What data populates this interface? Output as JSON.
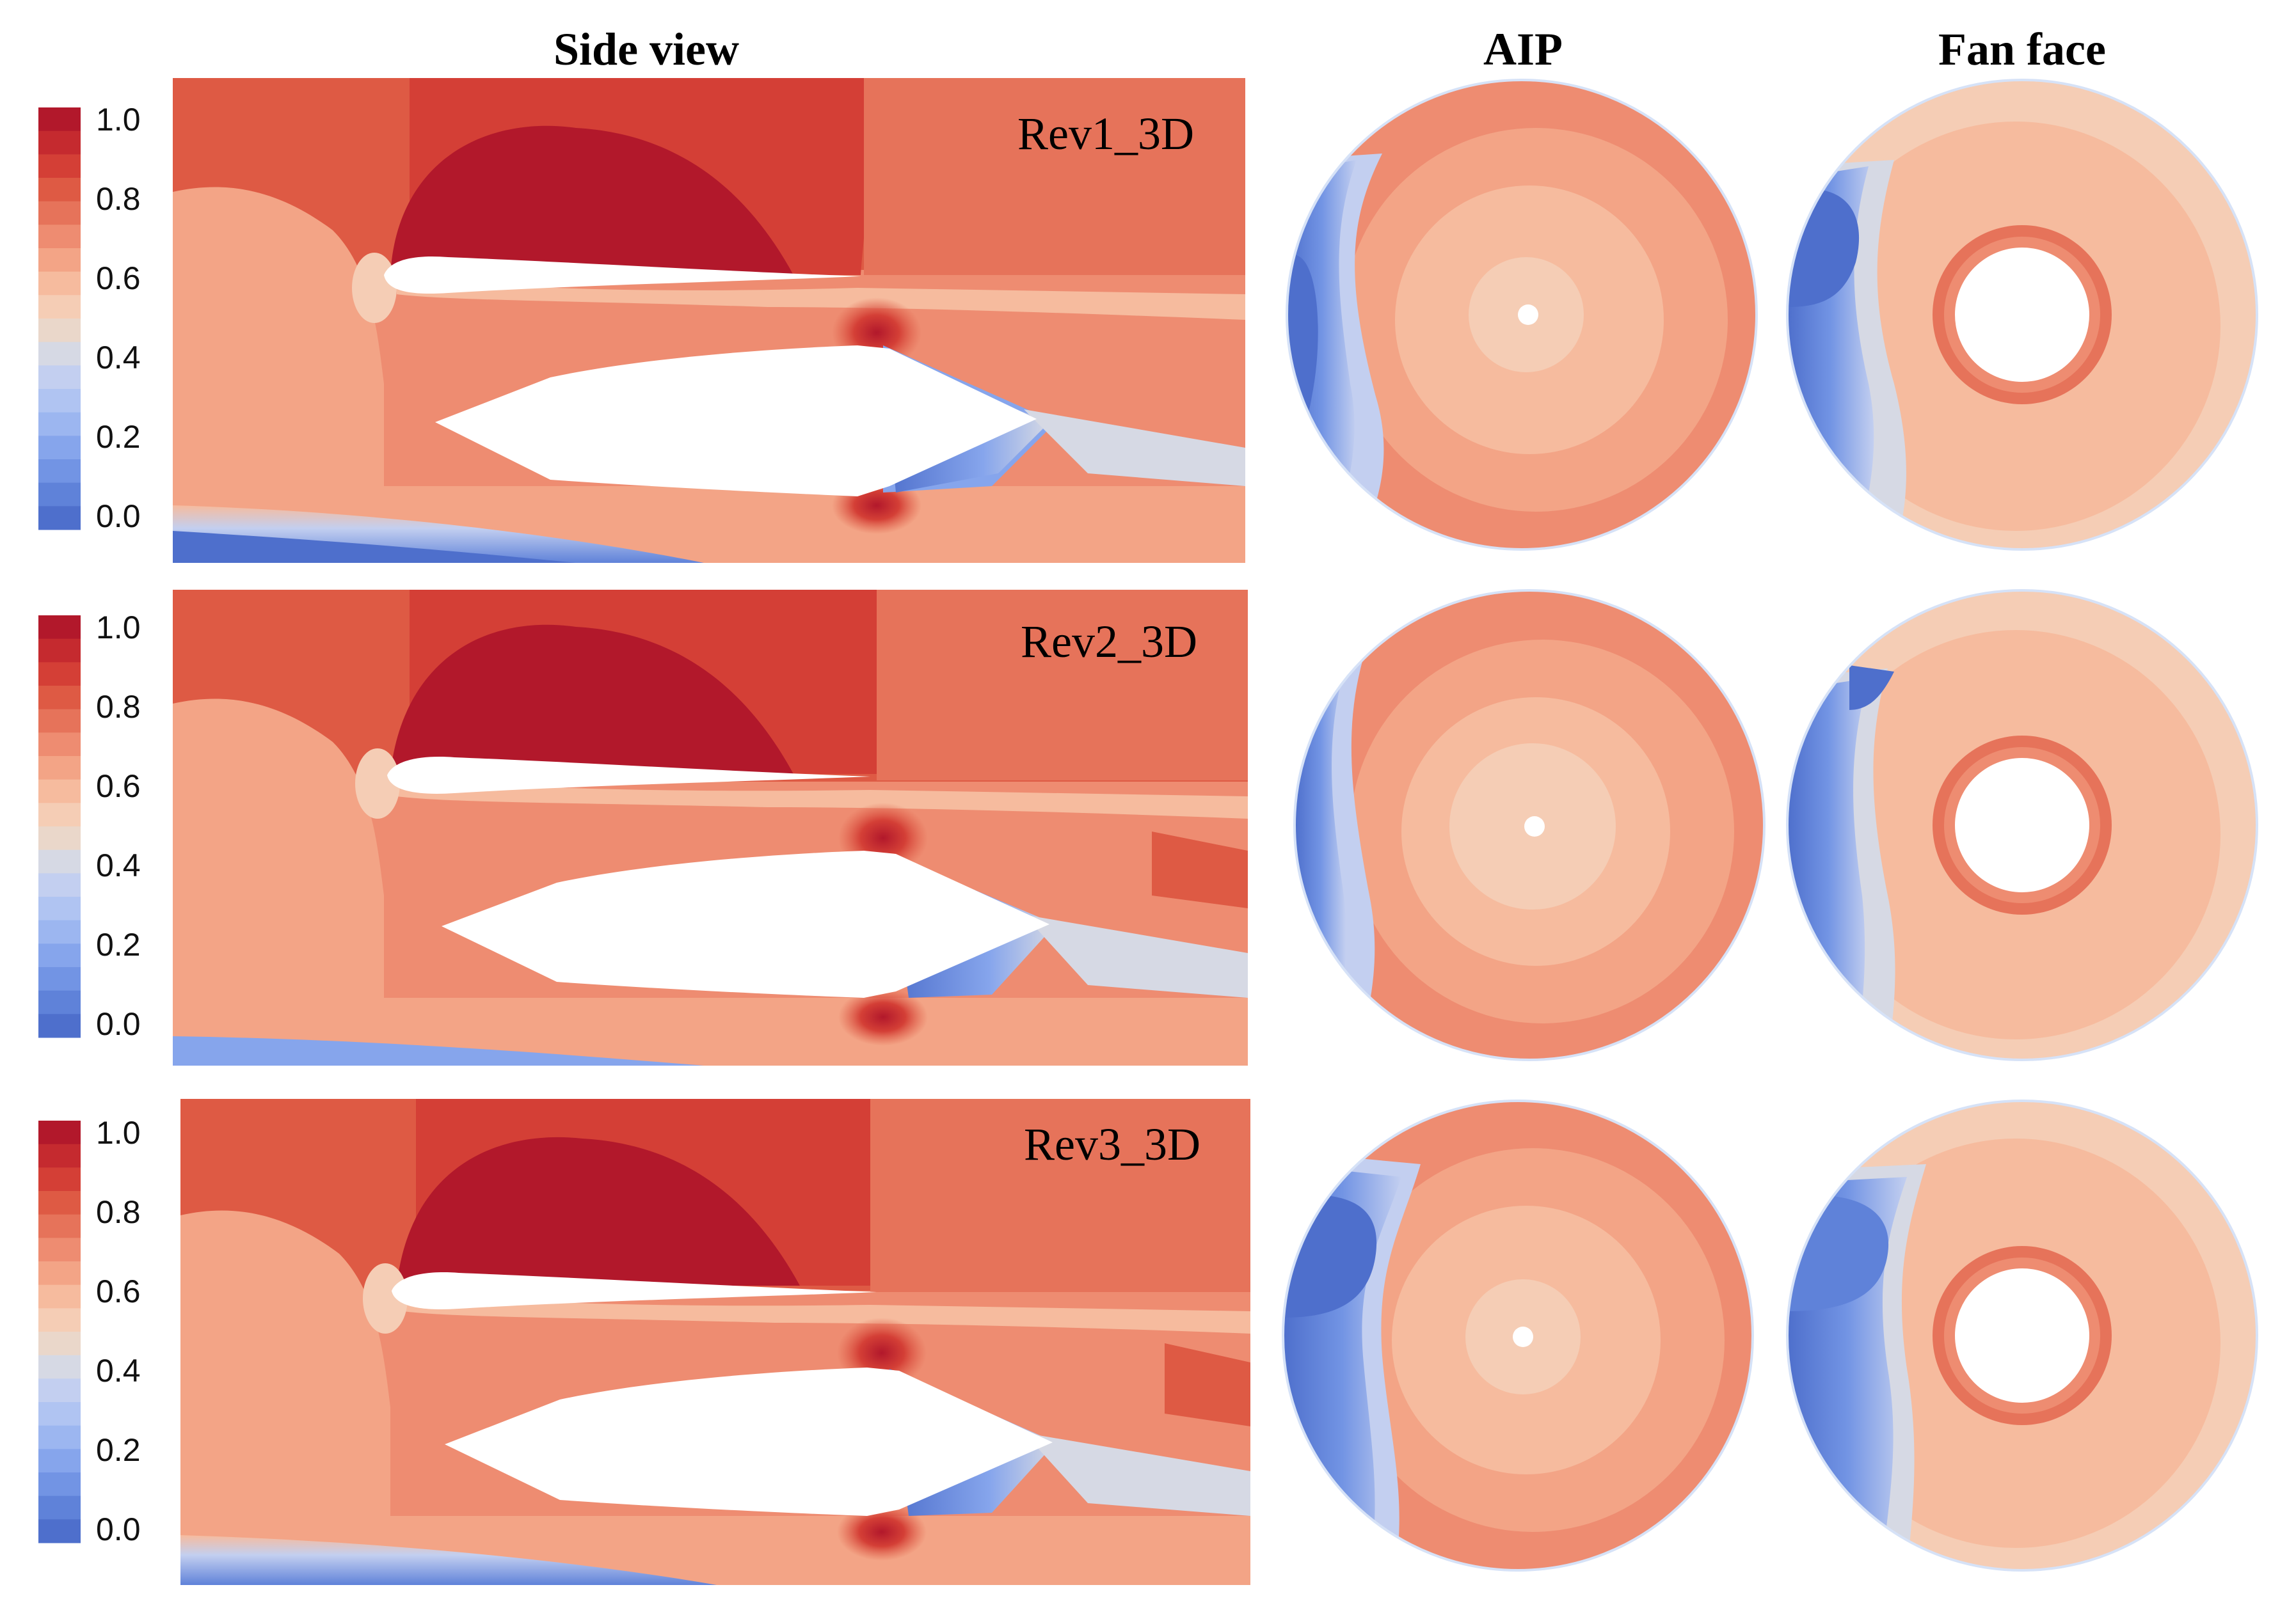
{
  "column_titles": {
    "side": "Side view",
    "aip": "AIP",
    "fan": "Fan face"
  },
  "colorbar": {
    "ticks": [
      "1.0",
      "0.8",
      "0.6",
      "0.4",
      "0.2",
      "0.0"
    ],
    "levels": [
      "#b2182b",
      "#c52a2f",
      "#d43f36",
      "#de5a44",
      "#e6735a",
      "#ee8c71",
      "#f3a486",
      "#f6bb9e",
      "#f5cdb5",
      "#ead7ca",
      "#d6d9e4",
      "#c3cff0",
      "#b0c4f2",
      "#9cb6f0",
      "#86a5ec",
      "#7294e4",
      "#5f82d9",
      "#4e6fcc"
    ]
  },
  "panels": [
    {
      "case": "Rev1_3D"
    },
    {
      "case": "Rev2_3D"
    },
    {
      "case": "Rev3_3D"
    }
  ],
  "colors": {
    "field_base": "#ee8c71",
    "field_light": "#f3a486",
    "field_pale": "#f6bb9e",
    "field_dark": "#de5a44",
    "field_peak": "#b2182b",
    "field_blue": "#5f82d9",
    "field_blue_light": "#9cb6f0"
  }
}
